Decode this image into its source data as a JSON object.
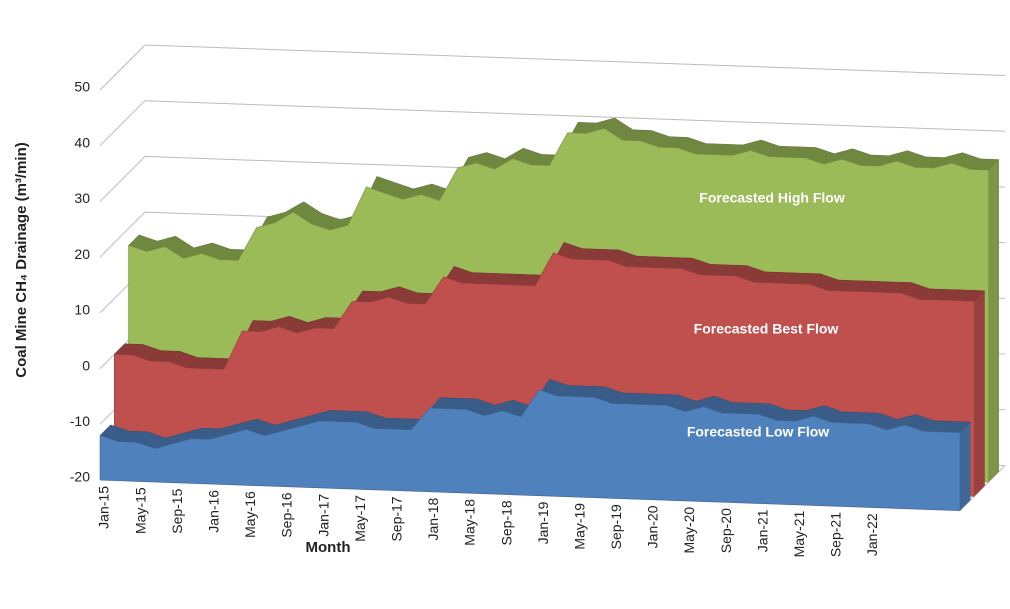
{
  "chart_data": {
    "type": "area3d",
    "y_label": "Coal Mine CH₄ Drainage (m³/min)",
    "x_label": "Month",
    "annotations": [
      "Forecasted High Flow",
      "Forecasted Best Flow",
      "Forecasted Low Flow"
    ],
    "categories": [
      "Jan-15",
      null,
      "May-15",
      null,
      "Sep-15",
      null,
      "Jan-16",
      null,
      "May-16",
      null,
      "Sep-16",
      null,
      "Jan-17",
      null,
      "May-17",
      null,
      "Sep-17",
      null,
      "Jan-18",
      null,
      "May-18",
      null,
      "Sep-18",
      null,
      "Jan-19",
      null,
      "May-19",
      null,
      "Sep-19",
      null,
      "Jan-20",
      null,
      "May-20",
      null,
      "Sep-20",
      null,
      "Jan-21",
      null,
      "May-21",
      null,
      "Sep-21",
      null,
      "Jan-22",
      null,
      null,
      null,
      null,
      null
    ],
    "series": [
      {
        "name": "High",
        "color": "#9bbb59",
        "values": [
          17,
          16,
          17,
          15,
          16,
          15,
          15,
          21,
          22,
          24,
          22,
          21,
          22,
          29,
          28,
          27,
          28,
          27,
          33,
          34,
          33,
          35,
          34,
          34,
          40,
          40,
          41,
          39,
          39,
          38,
          38,
          37,
          37,
          37,
          38,
          37,
          37,
          37,
          36,
          37,
          36,
          36,
          37,
          36,
          36,
          37,
          36,
          36
        ]
      },
      {
        "name": "Best",
        "color": "#c0504d",
        "values": [
          0,
          0,
          -1,
          -1,
          -2,
          -2,
          -2,
          5,
          5,
          6,
          5,
          6,
          6,
          11,
          11,
          12,
          11,
          11,
          16,
          15,
          15,
          15,
          15,
          15,
          21,
          20,
          20,
          20,
          19,
          19,
          19,
          19,
          18,
          18,
          18,
          17,
          17,
          17,
          17,
          16,
          16,
          16,
          16,
          16,
          15,
          15,
          15,
          15
        ]
      },
      {
        "name": "Low",
        "color": "#4f81bd",
        "values": [
          -12,
          -13,
          -13,
          -14,
          -13,
          -12,
          -12,
          -11,
          -10,
          -11,
          -10,
          -9,
          -8,
          -8,
          -8,
          -9,
          -9,
          -9,
          -5,
          -5,
          -5,
          -6,
          -5,
          -6,
          -1,
          -2,
          -2,
          -2,
          -3,
          -3,
          -3,
          -3,
          -4,
          -3,
          -4,
          -4,
          -4,
          -5,
          -5,
          -4,
          -5,
          -5,
          -5,
          -6,
          -5,
          -6,
          -6,
          -6
        ]
      }
    ],
    "ylim": [
      -20,
      50
    ],
    "yticks": [
      -20,
      -10,
      0,
      10,
      20,
      30,
      40,
      50
    ],
    "grid": true
  }
}
